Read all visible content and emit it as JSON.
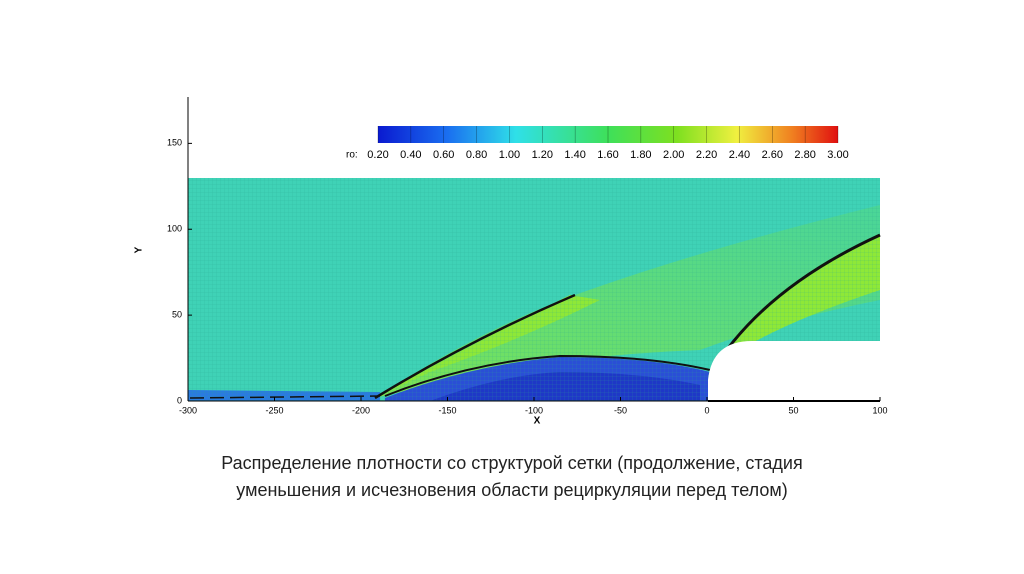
{
  "chart_data": {
    "type": "contour",
    "xlabel": "X",
    "ylabel": "Y",
    "xlim": [
      -300,
      100
    ],
    "xticks": [
      -300,
      -250,
      -200,
      -150,
      -100,
      -50,
      0,
      50,
      100
    ],
    "ylim": [
      0,
      177
    ],
    "yticks": [
      0,
      50,
      100,
      150
    ],
    "colorbar_label": "ro:",
    "colorbar_lim": [
      0.2,
      3.0
    ],
    "colorbar_ticks": [
      {
        "value": 0.2,
        "label": "0.20"
      },
      {
        "value": 0.4,
        "label": "0.40"
      },
      {
        "value": 0.6,
        "label": "0.60"
      },
      {
        "value": 0.8,
        "label": "0.80"
      },
      {
        "value": 1.0,
        "label": "1.00"
      },
      {
        "value": 1.2,
        "label": "1.20"
      },
      {
        "value": 1.4,
        "label": "1.40"
      },
      {
        "value": 1.6,
        "label": "1.60"
      },
      {
        "value": 1.8,
        "label": "1.80"
      },
      {
        "value": 2.0,
        "label": "2.00"
      },
      {
        "value": 2.2,
        "label": "2.20"
      },
      {
        "value": 2.4,
        "label": "2.40"
      },
      {
        "value": 2.6,
        "label": "2.60"
      },
      {
        "value": 2.8,
        "label": "2.80"
      },
      {
        "value": 3.0,
        "label": "3.00"
      }
    ]
  },
  "caption": [
    "Распределение плотности со структурой сетки (продолжение, стадия",
    "уменьшения и исчезновения области рециркуляции перед телом)"
  ]
}
